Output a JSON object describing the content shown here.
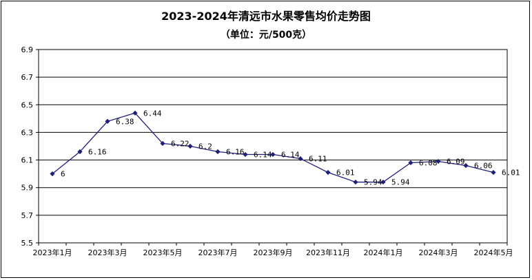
{
  "chart_data": {
    "type": "line",
    "title": "2023-2024年清远市水果零售均价走势图",
    "subtitle": "（单位：元/500克）",
    "xlabel": "",
    "ylabel": "",
    "ylim": [
      5.5,
      6.9
    ],
    "yticks": [
      "6.9",
      "6.7",
      "6.5",
      "6.3",
      "6.1",
      "5.9",
      "5.7",
      "5.5"
    ],
    "grid": true,
    "categories": [
      "2023年1月",
      "2023年2月",
      "2023年3月",
      "2023年4月",
      "2023年5月",
      "2023年6月",
      "2023年7月",
      "2023年8月",
      "2023年9月",
      "2023年10月",
      "2023年11月",
      "2023年12月",
      "2024年1月",
      "2024年2月",
      "2024年3月",
      "2024年4月",
      "2024年5月"
    ],
    "tick_labels": [
      "2023年1月",
      "2023年3月",
      "2023年5月",
      "2023年7月",
      "2023年9月",
      "2023年11月",
      "2024年1月",
      "2024年3月",
      "2024年5月"
    ],
    "series": [
      {
        "values": [
          6,
          6.16,
          6.38,
          6.44,
          6.22,
          6.2,
          6.16,
          6.14,
          6.14,
          6.11,
          6.01,
          5.94,
          5.94,
          6.08,
          6.09,
          6.06,
          6.01
        ],
        "labels": [
          "6",
          "6.16",
          "6.38",
          "6.44",
          "6.22",
          "6.2",
          "6.16",
          "6.14",
          "6.14",
          "6.11",
          "6.01",
          "5.94",
          "5.94",
          "6.08",
          "6.09",
          "6.06",
          "6.01"
        ],
        "color": "#1F1F7A"
      }
    ]
  }
}
